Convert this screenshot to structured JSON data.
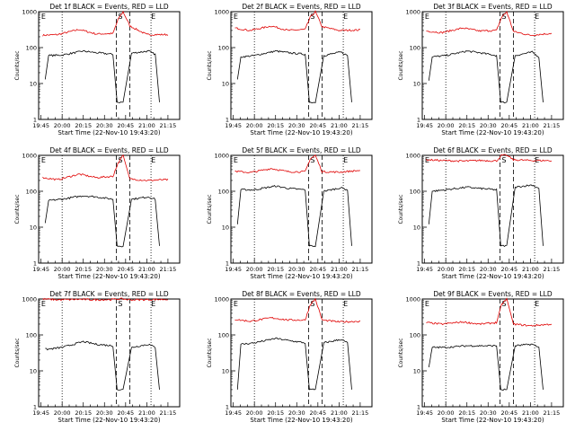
{
  "colors": {
    "events": "#000000",
    "lld": "#e00000",
    "axis": "#000000"
  },
  "chart_data": {
    "type": "line",
    "y_scale": "log",
    "ylim": [
      1,
      1000
    ],
    "y_ticks": [
      1,
      10,
      100,
      1000
    ],
    "y_tick_labels": [
      "1",
      "10",
      "100",
      "1000"
    ],
    "ylabel": "Counts/sec",
    "xlabel": "Start Time (22-Nov-10 19:43:20)",
    "x_ticks": [
      "19:45",
      "20:00",
      "20:15",
      "20:30",
      "20:45",
      "21:00",
      "21:15"
    ],
    "markers": {
      "e_left": "E",
      "s": "S",
      "e_right": "E"
    },
    "series_names": [
      "Events",
      "LLD"
    ],
    "panels": [
      {
        "title": "Det 1f BLACK = Events, RED = LLD",
        "events": [
          [
            19.8,
            13
          ],
          [
            19.84,
            60
          ],
          [
            20.0,
            62
          ],
          [
            20.25,
            80
          ],
          [
            20.4,
            72
          ],
          [
            20.6,
            65
          ],
          [
            20.65,
            3
          ],
          [
            20.72,
            3
          ],
          [
            20.82,
            70
          ],
          [
            21.02,
            80
          ],
          [
            21.1,
            65
          ],
          [
            21.15,
            3
          ]
        ],
        "lld": [
          [
            19.77,
            220
          ],
          [
            19.95,
            230
          ],
          [
            20.2,
            320
          ],
          [
            20.4,
            240
          ],
          [
            20.6,
            245
          ],
          [
            20.66,
            600
          ],
          [
            20.72,
            1000
          ],
          [
            20.8,
            400
          ],
          [
            21.0,
            230
          ],
          [
            21.25,
            230
          ]
        ]
      },
      {
        "title": "Det 2f BLACK = Events, RED = LLD",
        "events": [
          [
            19.8,
            13
          ],
          [
            19.84,
            55
          ],
          [
            20.0,
            60
          ],
          [
            20.25,
            80
          ],
          [
            20.4,
            72
          ],
          [
            20.6,
            65
          ],
          [
            20.65,
            3
          ],
          [
            20.72,
            3
          ],
          [
            20.82,
            60
          ],
          [
            21.02,
            75
          ],
          [
            21.1,
            60
          ],
          [
            21.15,
            3
          ]
        ],
        "lld": [
          [
            19.77,
            350
          ],
          [
            19.95,
            300
          ],
          [
            20.2,
            400
          ],
          [
            20.4,
            300
          ],
          [
            20.6,
            320
          ],
          [
            20.66,
            700
          ],
          [
            20.72,
            1000
          ],
          [
            20.8,
            380
          ],
          [
            21.0,
            300
          ],
          [
            21.25,
            310
          ]
        ]
      },
      {
        "title": "Det 3f BLACK = Events, RED = LLD",
        "events": [
          [
            19.8,
            12
          ],
          [
            19.84,
            55
          ],
          [
            20.0,
            60
          ],
          [
            20.25,
            80
          ],
          [
            20.4,
            72
          ],
          [
            20.6,
            60
          ],
          [
            20.65,
            3
          ],
          [
            20.72,
            3
          ],
          [
            20.82,
            60
          ],
          [
            21.02,
            75
          ],
          [
            21.1,
            55
          ],
          [
            21.15,
            3
          ]
        ],
        "lld": [
          [
            19.77,
            290
          ],
          [
            19.95,
            260
          ],
          [
            20.2,
            350
          ],
          [
            20.4,
            290
          ],
          [
            20.6,
            300
          ],
          [
            20.66,
            700
          ],
          [
            20.72,
            1000
          ],
          [
            20.8,
            280
          ],
          [
            21.0,
            220
          ],
          [
            21.25,
            250
          ]
        ]
      },
      {
        "title": "Det 4f BLACK = Events, RED = LLD",
        "events": [
          [
            19.8,
            13
          ],
          [
            19.84,
            55
          ],
          [
            20.0,
            60
          ],
          [
            20.25,
            75
          ],
          [
            20.4,
            70
          ],
          [
            20.6,
            60
          ],
          [
            20.65,
            3
          ],
          [
            20.72,
            3
          ],
          [
            20.82,
            60
          ],
          [
            21.02,
            70
          ],
          [
            21.1,
            60
          ],
          [
            21.15,
            3
          ]
        ],
        "lld": [
          [
            19.77,
            240
          ],
          [
            19.95,
            210
          ],
          [
            20.2,
            300
          ],
          [
            20.4,
            240
          ],
          [
            20.6,
            260
          ],
          [
            20.66,
            600
          ],
          [
            20.72,
            1000
          ],
          [
            20.8,
            220
          ],
          [
            21.0,
            200
          ],
          [
            21.25,
            210
          ]
        ]
      },
      {
        "title": "Det 5f BLACK = Events, RED = LLD",
        "events": [
          [
            19.8,
            12
          ],
          [
            19.84,
            110
          ],
          [
            20.0,
            110
          ],
          [
            20.25,
            140
          ],
          [
            20.4,
            120
          ],
          [
            20.6,
            110
          ],
          [
            20.65,
            3
          ],
          [
            20.72,
            3
          ],
          [
            20.82,
            100
          ],
          [
            21.02,
            125
          ],
          [
            21.1,
            110
          ],
          [
            21.15,
            3
          ]
        ],
        "lld": [
          [
            19.77,
            360
          ],
          [
            19.95,
            330
          ],
          [
            20.2,
            430
          ],
          [
            20.4,
            350
          ],
          [
            20.6,
            350
          ],
          [
            20.66,
            800
          ],
          [
            20.72,
            1000
          ],
          [
            20.8,
            350
          ],
          [
            21.0,
            340
          ],
          [
            21.25,
            380
          ]
        ]
      },
      {
        "title": "Det 6f BLACK = Events, RED = LLD",
        "events": [
          [
            19.8,
            12
          ],
          [
            19.84,
            100
          ],
          [
            20.0,
            110
          ],
          [
            20.25,
            130
          ],
          [
            20.4,
            120
          ],
          [
            20.6,
            110
          ],
          [
            20.65,
            3
          ],
          [
            20.72,
            3
          ],
          [
            20.82,
            130
          ],
          [
            21.02,
            150
          ],
          [
            21.1,
            120
          ],
          [
            21.15,
            3
          ]
        ],
        "lld": [
          [
            19.77,
            750
          ],
          [
            19.95,
            720
          ],
          [
            20.2,
            690
          ],
          [
            20.4,
            720
          ],
          [
            20.6,
            700
          ],
          [
            20.66,
            1000
          ],
          [
            20.72,
            1000
          ],
          [
            20.8,
            750
          ],
          [
            21.0,
            720
          ],
          [
            21.25,
            710
          ]
        ]
      },
      {
        "title": "Det 7f BLACK = Events, RED = LLD",
        "events": [
          [
            19.8,
            40
          ],
          [
            19.84,
            40
          ],
          [
            20.0,
            45
          ],
          [
            20.25,
            65
          ],
          [
            20.4,
            55
          ],
          [
            20.6,
            50
          ],
          [
            20.65,
            3
          ],
          [
            20.72,
            3
          ],
          [
            20.82,
            45
          ],
          [
            21.02,
            55
          ],
          [
            21.1,
            45
          ],
          [
            21.15,
            3
          ]
        ],
        "lld": [
          [
            19.77,
            1000
          ],
          [
            19.95,
            950
          ],
          [
            20.2,
            980
          ],
          [
            20.4,
            950
          ],
          [
            20.6,
            970
          ],
          [
            20.66,
            1000
          ],
          [
            20.72,
            1000
          ],
          [
            20.8,
            950
          ],
          [
            21.0,
            960
          ],
          [
            21.25,
            980
          ]
        ]
      },
      {
        "title": "Det 8f BLACK = Events, RED = LLD",
        "events": [
          [
            19.8,
            3
          ],
          [
            19.84,
            55
          ],
          [
            20.0,
            60
          ],
          [
            20.25,
            80
          ],
          [
            20.4,
            70
          ],
          [
            20.6,
            60
          ],
          [
            20.65,
            3
          ],
          [
            20.72,
            3
          ],
          [
            20.82,
            60
          ],
          [
            21.02,
            75
          ],
          [
            21.1,
            60
          ],
          [
            21.15,
            3
          ]
        ],
        "lld": [
          [
            19.77,
            270
          ],
          [
            19.95,
            240
          ],
          [
            20.2,
            300
          ],
          [
            20.4,
            260
          ],
          [
            20.6,
            260
          ],
          [
            20.66,
            700
          ],
          [
            20.72,
            1000
          ],
          [
            20.8,
            260
          ],
          [
            21.0,
            230
          ],
          [
            21.25,
            240
          ]
        ]
      },
      {
        "title": "Det 9f BLACK = Events, RED = LLD",
        "events": [
          [
            19.8,
            12
          ],
          [
            19.84,
            45
          ],
          [
            20.0,
            45
          ],
          [
            20.25,
            50
          ],
          [
            20.4,
            50
          ],
          [
            20.6,
            50
          ],
          [
            20.65,
            3
          ],
          [
            20.72,
            3
          ],
          [
            20.82,
            50
          ],
          [
            21.02,
            55
          ],
          [
            21.1,
            45
          ],
          [
            21.15,
            3
          ]
        ],
        "lld": [
          [
            19.77,
            220
          ],
          [
            19.95,
            200
          ],
          [
            20.2,
            230
          ],
          [
            20.4,
            200
          ],
          [
            20.6,
            220
          ],
          [
            20.66,
            700
          ],
          [
            20.72,
            1000
          ],
          [
            20.8,
            200
          ],
          [
            21.0,
            180
          ],
          [
            21.25,
            200
          ]
        ]
      }
    ]
  }
}
